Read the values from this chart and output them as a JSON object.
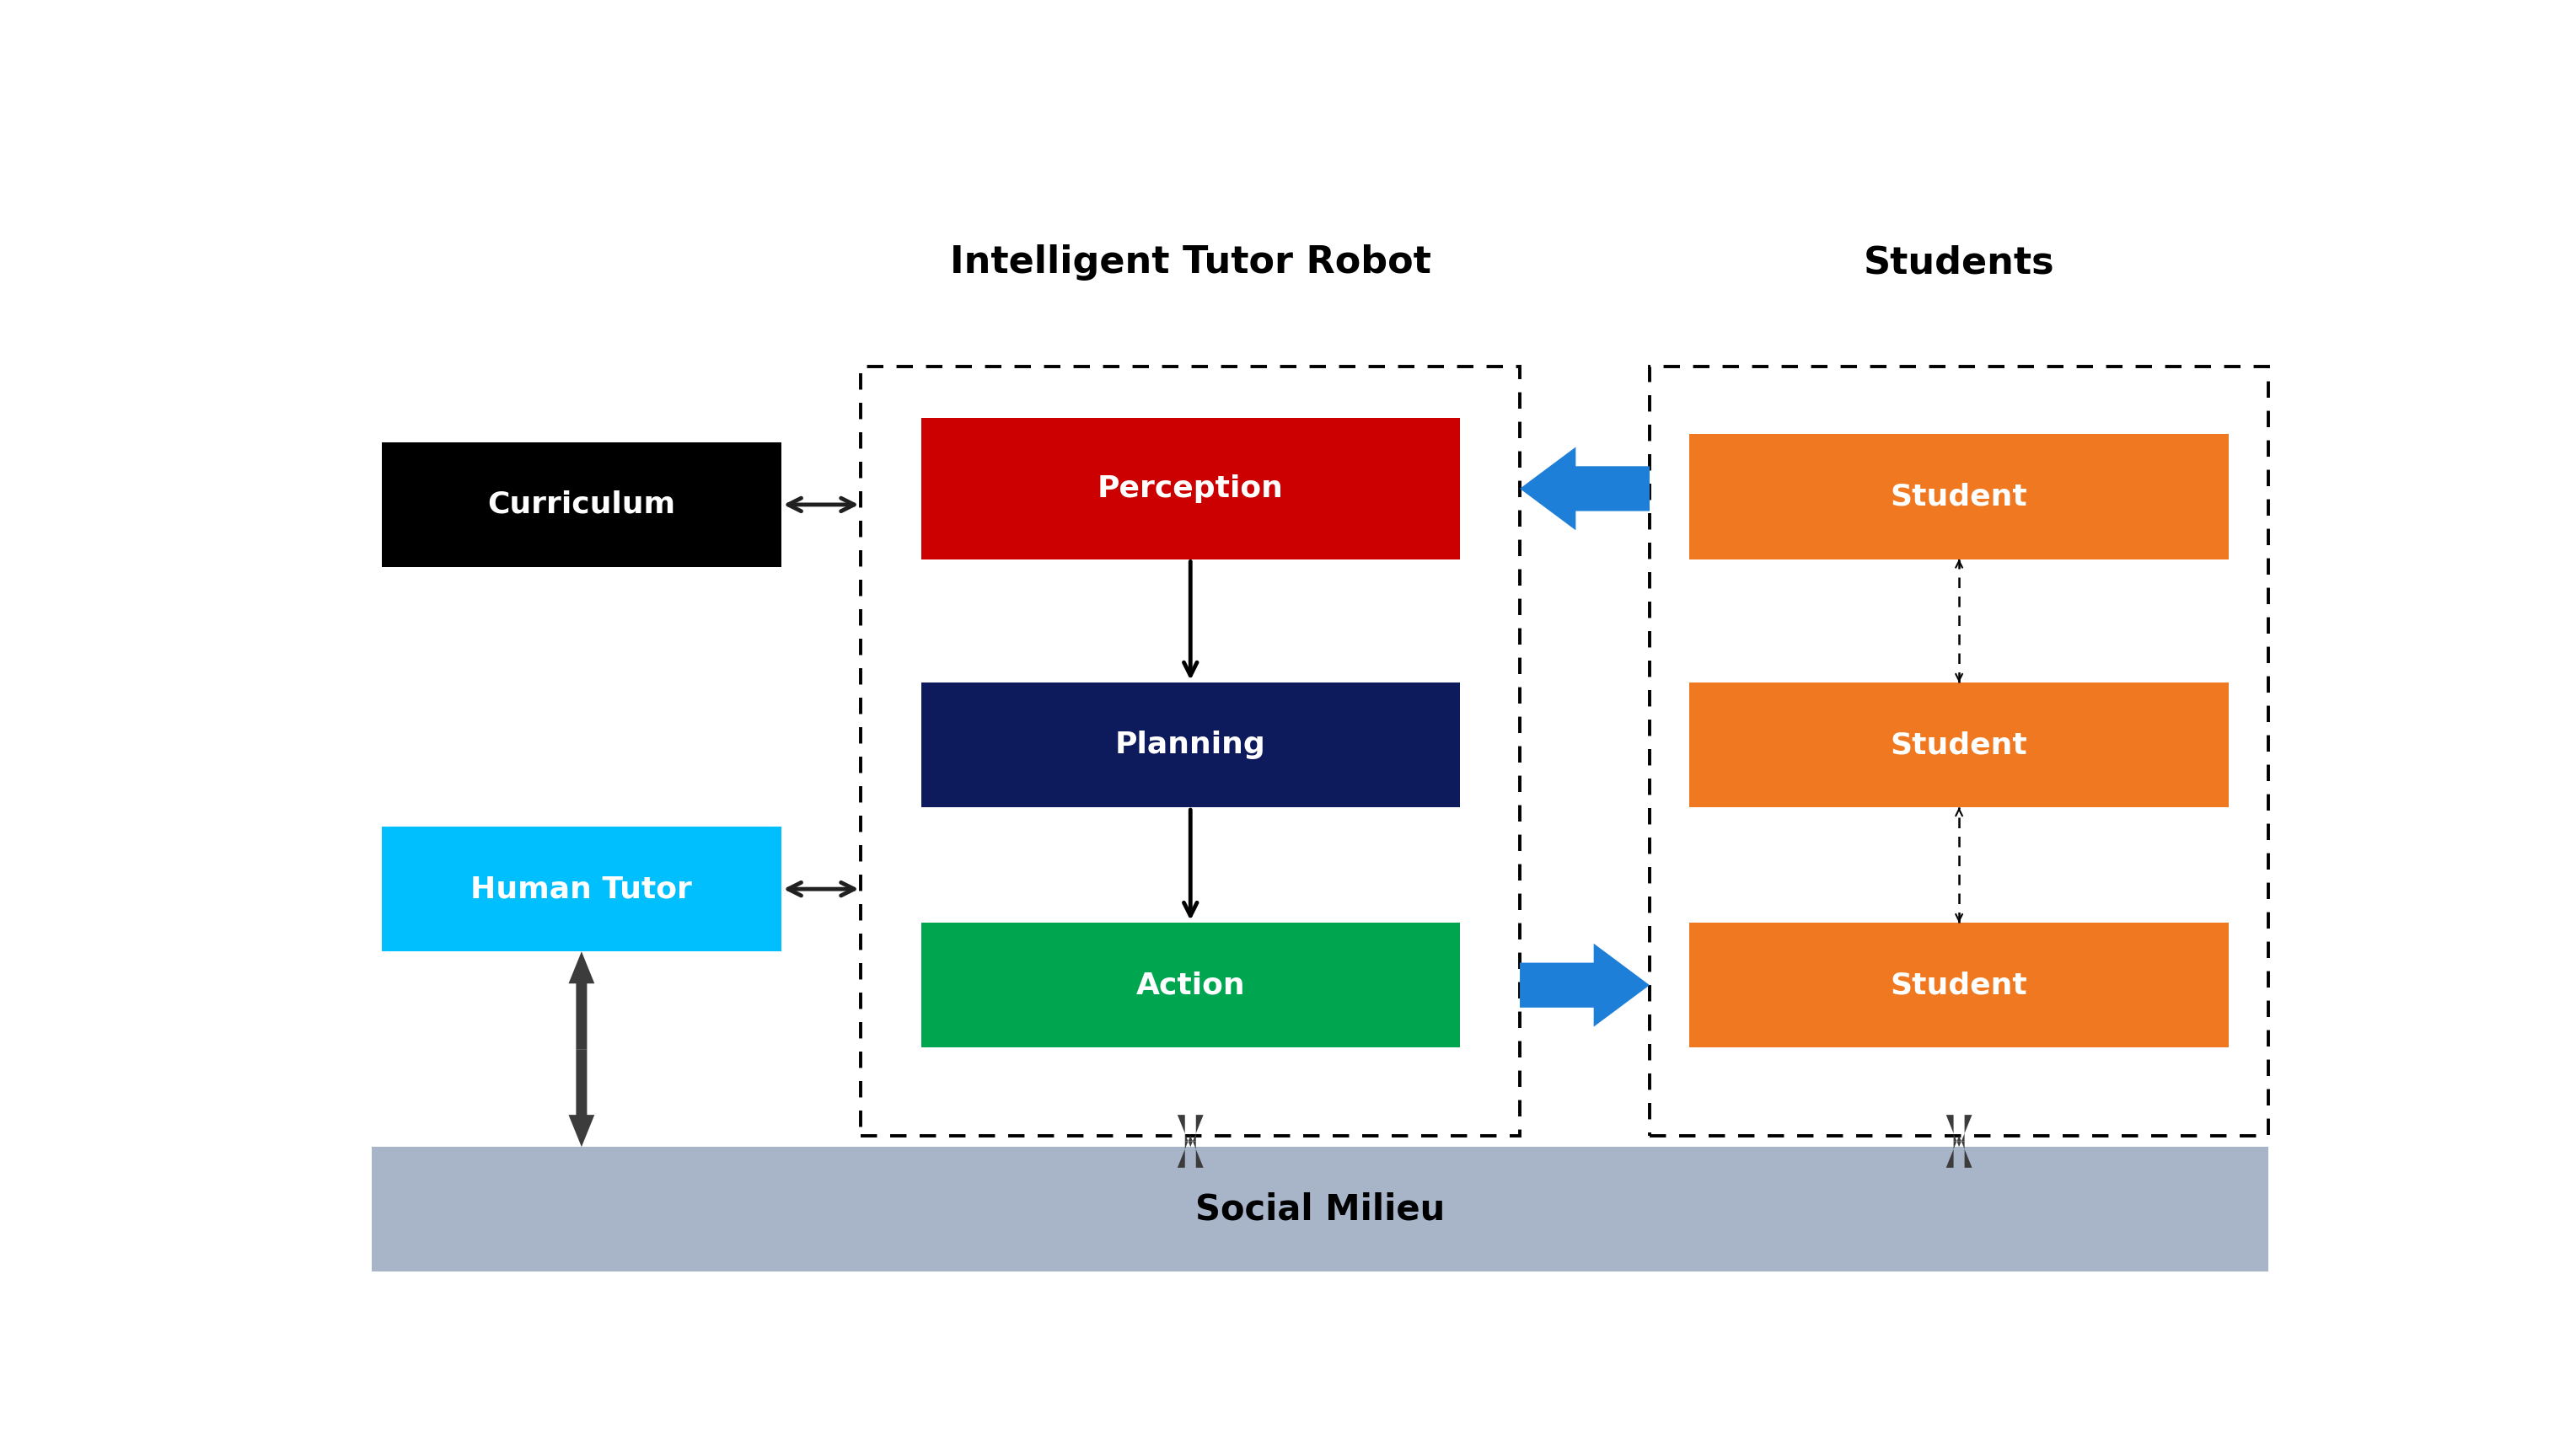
{
  "title_robot": "Intelligent Tutor Robot",
  "title_students": "Students",
  "label_curriculum": "Curriculum",
  "label_human_tutor": "Human Tutor",
  "label_perception": "Perception",
  "label_planning": "Planning",
  "label_action": "Action",
  "label_student": "Student",
  "label_social": "Social Milieu",
  "color_curriculum": "#000000",
  "color_human_tutor": "#00BFFF",
  "color_perception": "#CC0000",
  "color_planning": "#0D1A5C",
  "color_action": "#00A550",
  "color_student": "#F07820",
  "color_social": "#A8B4C8",
  "color_blue_arrow": "#1E7FD8",
  "color_dark_arrow": "#3A3A3A",
  "text_color_white": "#FFFFFF",
  "text_color_black": "#000000",
  "bg_color": "#FFFFFF"
}
